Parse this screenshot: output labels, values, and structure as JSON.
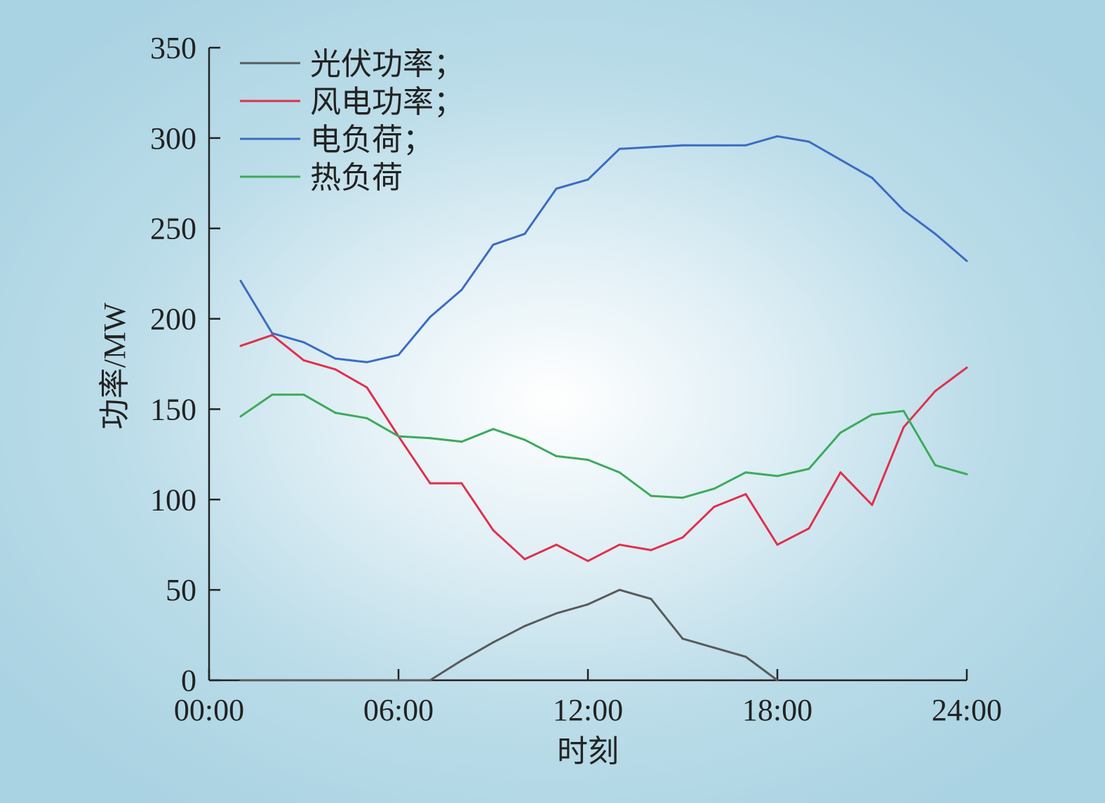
{
  "chart_data": {
    "type": "line",
    "xlabel": "时刻",
    "ylabel": "功率/MW",
    "xlim": [
      0,
      24
    ],
    "ylim": [
      0,
      350
    ],
    "x_ticks": [
      {
        "value": 0,
        "label": "00:00"
      },
      {
        "value": 6,
        "label": "06:00"
      },
      {
        "value": 12,
        "label": "12:00"
      },
      {
        "value": 18,
        "label": "18:00"
      },
      {
        "value": 24,
        "label": "24:00"
      }
    ],
    "y_ticks": [
      {
        "value": 0,
        "label": "0"
      },
      {
        "value": 50,
        "label": "50"
      },
      {
        "value": 100,
        "label": "100"
      },
      {
        "value": 150,
        "label": "150"
      },
      {
        "value": 200,
        "label": "200"
      },
      {
        "value": 250,
        "label": "250"
      },
      {
        "value": 300,
        "label": "300"
      },
      {
        "value": 350,
        "label": "350"
      }
    ],
    "legend_position": "top-left",
    "grid": false,
    "x": [
      1,
      2,
      3,
      4,
      5,
      6,
      7,
      8,
      9,
      10,
      11,
      12,
      13,
      14,
      15,
      16,
      17,
      18,
      19,
      20,
      21,
      22,
      23,
      24
    ],
    "series": [
      {
        "name": "光伏功率；",
        "color": "#5a5a5a",
        "values": [
          0,
          0,
          0,
          0,
          0,
          0,
          0,
          11,
          21,
          30,
          37,
          42,
          50,
          45,
          23,
          18,
          13,
          0,
          null,
          null,
          null,
          null,
          null,
          null
        ]
      },
      {
        "name": "风电功率；",
        "color": "#e0304a",
        "values": [
          185,
          191,
          177,
          172,
          162,
          135,
          109,
          109,
          83,
          67,
          75,
          66,
          75,
          72,
          79,
          96,
          103,
          75,
          84,
          115,
          97,
          140,
          160,
          173
        ]
      },
      {
        "name": "电负荷；",
        "color": "#3a6cc4",
        "values": [
          221,
          192,
          187,
          178,
          176,
          180,
          201,
          216,
          241,
          247,
          272,
          277,
          294,
          295,
          296,
          296,
          296,
          301,
          298,
          288,
          278,
          260,
          247,
          232
        ]
      },
      {
        "name": "热负荷",
        "color": "#3daa5c",
        "values": [
          146,
          158,
          158,
          148,
          145,
          135,
          134,
          132,
          139,
          133,
          124,
          122,
          115,
          102,
          101,
          106,
          115,
          113,
          117,
          137,
          147,
          149,
          119,
          114
        ]
      }
    ]
  }
}
